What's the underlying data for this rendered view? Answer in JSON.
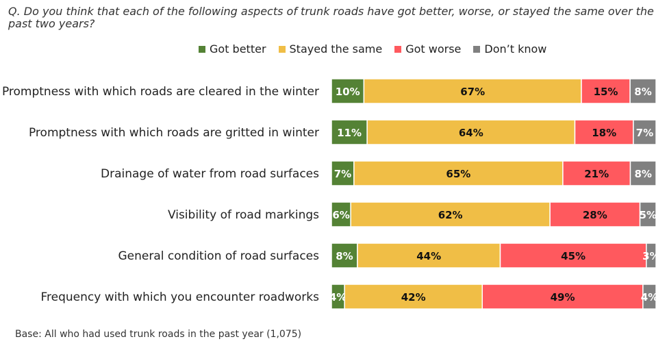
{
  "question": "Q. Do you think that each of the following aspects of trunk roads have got better, worse, or stayed the same over the past two years?",
  "base": "Base: All who had used trunk roads in the past year (1,075)",
  "chart_data": {
    "type": "bar",
    "orientation": "horizontal-stacked-100",
    "legend_position": "top",
    "categories": [
      "Promptness with which roads are cleared in the winter",
      "Promptness with which roads are gritted in winter",
      "Drainage of water from road surfaces",
      "Visibility of road markings",
      "General condition of road surfaces",
      "Frequency with which you encounter roadworks"
    ],
    "series": [
      {
        "name": "Got better",
        "color": "#548235",
        "label_color": "#ffffff",
        "values": [
          10,
          11,
          7,
          6,
          8,
          4
        ]
      },
      {
        "name": "Stayed the same",
        "color": "#f0be46",
        "label_color": "#111111",
        "values": [
          67,
          64,
          65,
          62,
          44,
          42
        ]
      },
      {
        "name": "Got worse",
        "color": "#ff595e",
        "label_color": "#111111",
        "values": [
          15,
          18,
          21,
          28,
          45,
          49
        ]
      },
      {
        "name": "Don’t know",
        "color": "#808080",
        "label_color": "#ffffff",
        "values": [
          8,
          7,
          8,
          5,
          3,
          4
        ]
      }
    ],
    "unit": "%"
  }
}
